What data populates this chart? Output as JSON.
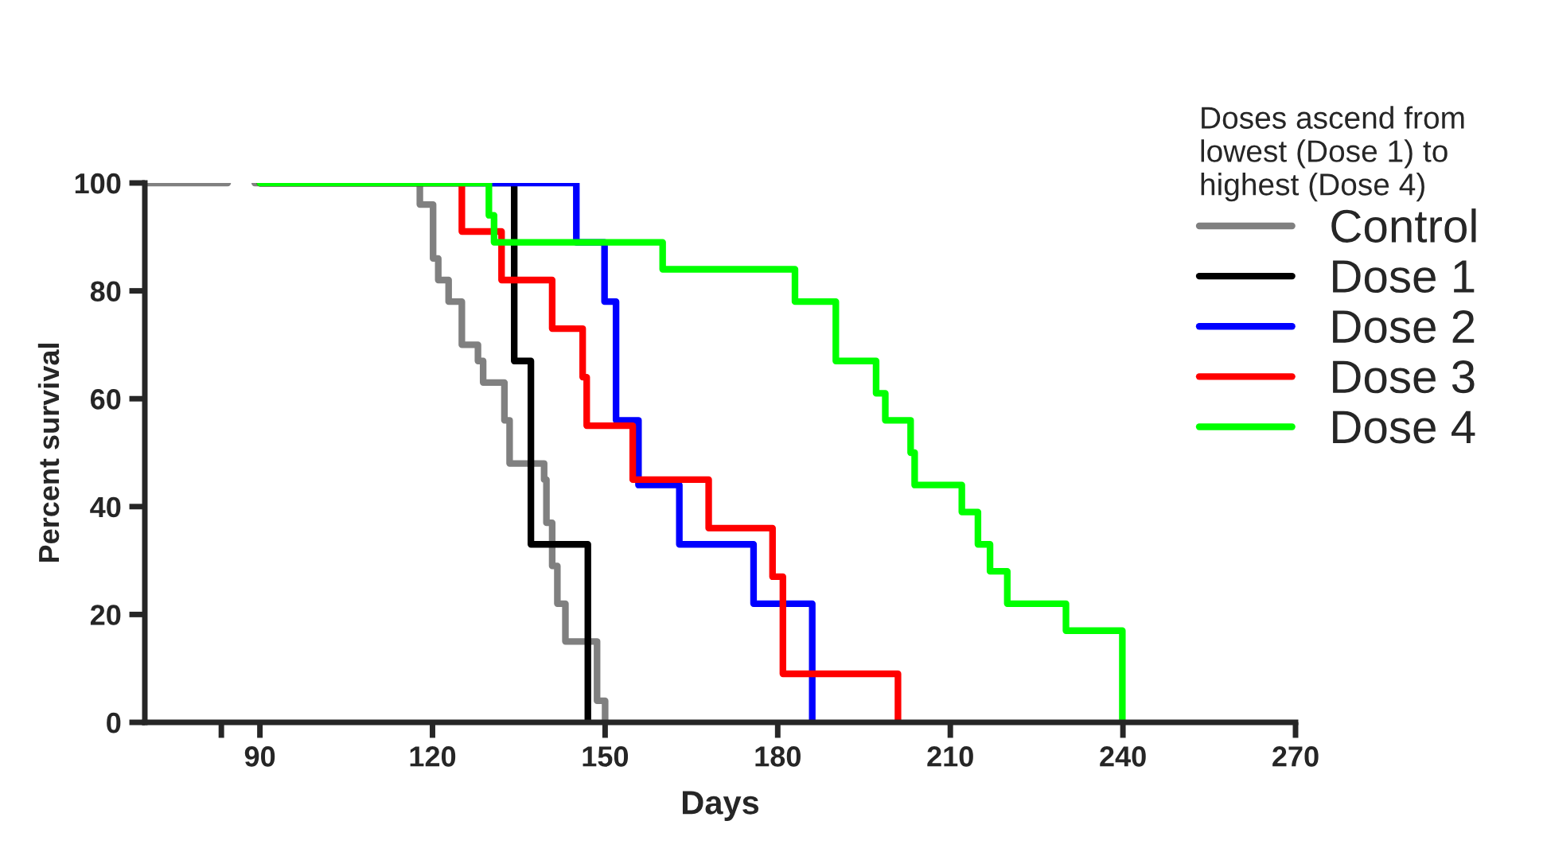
{
  "chart_data": {
    "type": "step",
    "xlabel": "Days",
    "ylabel": "Percent survival",
    "legend_title": "Doses ascend from\nlowest (Dose 1) to\nhighest (Dose 4)",
    "legend": "right",
    "xlim": [
      70,
      270
    ],
    "xticks": [
      {
        "value": 83.3,
        "label": null
      },
      90,
      120,
      150,
      180,
      210,
      240,
      270
    ],
    "ylim": [
      0,
      100
    ],
    "yticks": [
      0,
      20,
      40,
      60,
      80,
      100
    ],
    "series": [
      {
        "name": "Control",
        "color": "#808080",
        "x": [
          70,
          84.4,
          89.1,
          117.8,
          120.1,
          121.0,
          122.8,
          125.1,
          127.9,
          128.8,
          132.5,
          133.4,
          139.4,
          139.8,
          140.8,
          141.7,
          143.1,
          148.6,
          150.0
        ],
        "values": [
          100,
          null,
          100,
          96,
          86,
          82,
          78,
          70,
          67,
          63,
          56,
          48,
          45,
          37,
          29,
          22,
          15,
          4,
          0
        ]
      },
      {
        "name": "Dose 1",
        "color": "#000000",
        "x": [
          90,
          134.2,
          137.1,
          147.0
        ],
        "values": [
          100,
          67,
          33,
          0
        ]
      },
      {
        "name": "Dose 2",
        "color": "#0000ff",
        "x": [
          90,
          145.0,
          149.9,
          151.9,
          155.8,
          162.9,
          175.8,
          186.0
        ],
        "values": [
          100,
          89,
          78,
          56,
          44,
          33,
          22,
          0
        ]
      },
      {
        "name": "Dose 3",
        "color": "#ff0000",
        "x": [
          90,
          125.1,
          132.0,
          140.8,
          146.1,
          146.8,
          154.8,
          168.0,
          179.1,
          180.9,
          200.9
        ],
        "values": [
          100,
          91,
          82,
          73,
          64,
          55,
          45,
          36,
          27,
          9,
          0
        ]
      },
      {
        "name": "Dose 4",
        "color": "#00ff00",
        "x": [
          90,
          129.8,
          130.7,
          160.0,
          183.0,
          190.1,
          197.1,
          198.7,
          203.1,
          203.8,
          212.0,
          214.8,
          216.9,
          219.9,
          230.1,
          239.9
        ],
        "values": [
          100,
          94,
          89,
          84,
          78,
          67,
          61,
          56,
          50,
          44,
          39,
          33,
          28,
          22,
          17,
          0
        ]
      }
    ]
  }
}
